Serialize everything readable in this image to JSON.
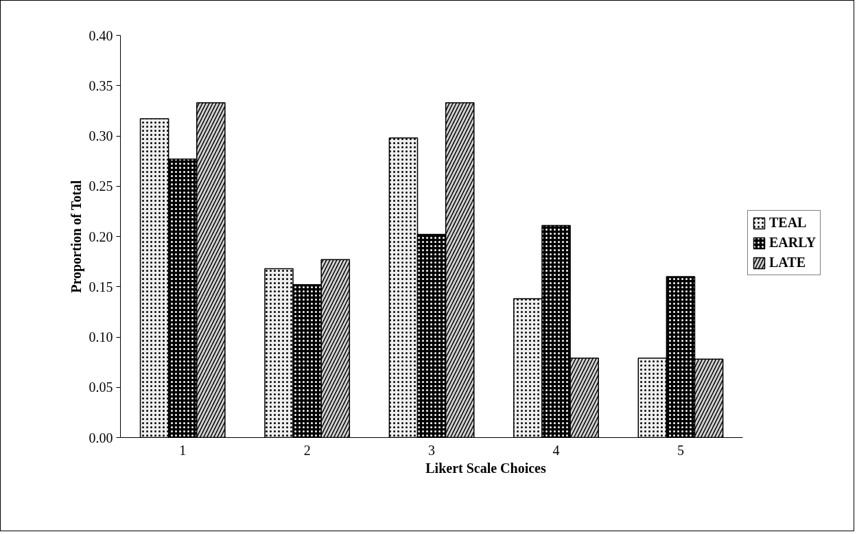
{
  "chart_data": {
    "type": "bar",
    "xlabel": "Likert Scale Choices",
    "ylabel": "Proportion of Total",
    "categories": [
      "1",
      "2",
      "3",
      "4",
      "5"
    ],
    "series": [
      {
        "name": "TEAL",
        "color": "#eeeeee",
        "values": [
          0.317,
          0.168,
          0.298,
          0.138,
          0.079
        ]
      },
      {
        "name": "EARLY",
        "color": "#000000",
        "values": [
          0.277,
          0.152,
          0.202,
          0.211,
          0.16
        ]
      },
      {
        "name": "LATE",
        "color": "#d0d0d0",
        "values": [
          0.333,
          0.177,
          0.333,
          0.079,
          0.078
        ]
      }
    ],
    "ylim": [
      0,
      0.4
    ],
    "yticks": [
      {
        "value": 0,
        "label": "0.00"
      },
      {
        "value": 0.05,
        "label": "0.05"
      },
      {
        "value": 0.1,
        "label": "0.10"
      },
      {
        "value": 0.15,
        "label": "0.15"
      },
      {
        "value": 0.2,
        "label": "0.20"
      },
      {
        "value": 0.25,
        "label": "0.25"
      },
      {
        "value": 0.3,
        "label": "0.30"
      },
      {
        "value": 0.35,
        "label": "0.35"
      },
      {
        "value": 0.4,
        "label": "0.40"
      }
    ],
    "legend": "right",
    "grid": false
  }
}
